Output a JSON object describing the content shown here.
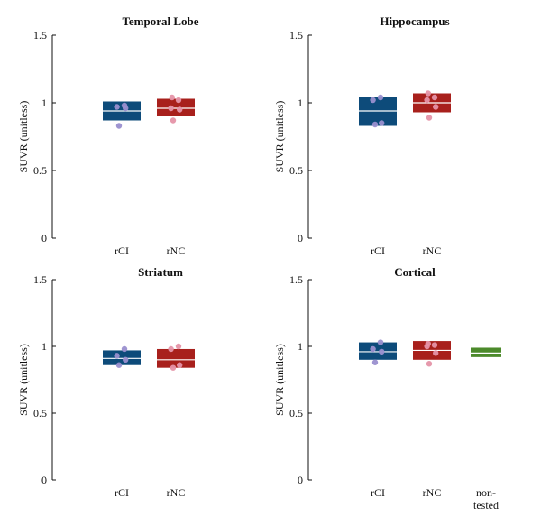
{
  "chart_data": [
    {
      "type": "box",
      "title": "Temporal Lobe",
      "ylabel": "SUVR (unitless)",
      "ylim": [
        0,
        1.5
      ],
      "yticks": [
        "0",
        "0.5",
        "1",
        "1.5"
      ],
      "categories": [
        "rCI",
        "rNC"
      ],
      "boxes": [
        {
          "category": "rCI",
          "low": 0.87,
          "mid": 0.94,
          "high": 1.01,
          "points": [
            0.83,
            0.96,
            0.97,
            0.98
          ]
        },
        {
          "category": "rNC",
          "low": 0.9,
          "mid": 0.96,
          "high": 1.03,
          "points": [
            0.87,
            0.95,
            0.96,
            1.02,
            1.04
          ]
        }
      ]
    },
    {
      "type": "box",
      "title": "Hippocampus",
      "ylabel": "SUVR (unitless)",
      "ylim": [
        0,
        1.5
      ],
      "yticks": [
        "0",
        "0.5",
        "1",
        "1.5"
      ],
      "categories": [
        "rCI",
        "rNC"
      ],
      "boxes": [
        {
          "category": "rCI",
          "low": 0.83,
          "mid": 0.94,
          "high": 1.04,
          "points": [
            0.84,
            0.85,
            1.02,
            1.04
          ]
        },
        {
          "category": "rNC",
          "low": 0.93,
          "mid": 1.0,
          "high": 1.07,
          "points": [
            0.89,
            0.97,
            1.02,
            1.04,
            1.07
          ]
        }
      ]
    },
    {
      "type": "box",
      "title": "Striatum",
      "ylabel": "SUVR (unitless)",
      "ylim": [
        0,
        1.5
      ],
      "yticks": [
        "0",
        "0.5",
        "1",
        "1.5"
      ],
      "categories": [
        "rCI",
        "rNC"
      ],
      "boxes": [
        {
          "category": "rCI",
          "low": 0.86,
          "mid": 0.91,
          "high": 0.97,
          "points": [
            0.86,
            0.9,
            0.93,
            0.98
          ]
        },
        {
          "category": "rNC",
          "low": 0.84,
          "mid": 0.9,
          "high": 0.98,
          "points": [
            0.84,
            0.86,
            0.98,
            1.0
          ]
        }
      ]
    },
    {
      "type": "box",
      "title": "Cortical",
      "ylabel": "SUVR (unitless)",
      "ylim": [
        0,
        1.5
      ],
      "yticks": [
        "0",
        "0.5",
        "1",
        "1.5"
      ],
      "categories": [
        "rCI",
        "rNC",
        "non-\ntested"
      ],
      "boxes": [
        {
          "category": "rCI",
          "low": 0.9,
          "mid": 0.96,
          "high": 1.03,
          "points": [
            0.88,
            0.96,
            0.98,
            1.03
          ]
        },
        {
          "category": "rNC",
          "low": 0.9,
          "mid": 0.97,
          "high": 1.04,
          "points": [
            0.87,
            0.95,
            1.0,
            1.01,
            1.02
          ]
        },
        {
          "category": "non-\ntested",
          "low": 0.92,
          "mid": 0.95,
          "high": 0.99,
          "points": []
        }
      ]
    }
  ],
  "colors": {
    "rCI": "#0d4b7a",
    "rNC": "#a8201c",
    "non-\ntested": "#4c8a2b",
    "rCI_point": "#9a8fcf",
    "rNC_point": "#e594a8",
    "axis": "#111111",
    "median_line": "#ffffff"
  }
}
